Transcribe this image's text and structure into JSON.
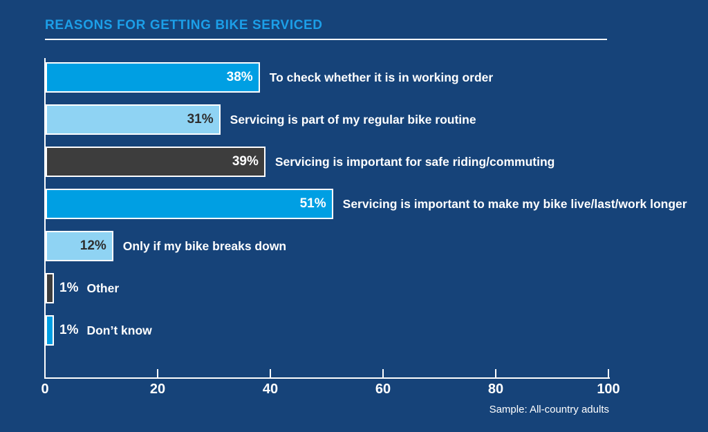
{
  "title": "REASONS FOR GETTING BIKE SERVICED",
  "footnote": "Sample: All-country adults",
  "colors": {
    "background": "#164379",
    "title": "#1C9FE8",
    "axis": "#FFFFFF",
    "bar_blue": "#009FE3",
    "bar_light_blue": "#8FD3F3",
    "bar_dark": "#3D3D3D",
    "value_text_light": "#FFFFFF",
    "value_text_dark": "#2E2E2E"
  },
  "chart_data": {
    "type": "bar",
    "orientation": "horizontal",
    "title": "REASONS FOR GETTING BIKE SERVICED",
    "xlabel": "",
    "ylabel": "",
    "xlim": [
      0,
      100
    ],
    "xticks": [
      0,
      20,
      40,
      60,
      80,
      100
    ],
    "grid": false,
    "legend": false,
    "footnote": "Sample: All-country adults",
    "categories": [
      "To check whether it is in working order",
      "Servicing is part of my regular bike routine",
      "Servicing is important for safe riding/commuting",
      "Servicing is important to make my bike live/last/work longer",
      "Only if my bike breaks down",
      "Other",
      "Don’t know"
    ],
    "values": [
      38,
      31,
      39,
      51,
      12,
      1,
      1
    ],
    "bars": [
      {
        "label": "To check whether it is in working order",
        "value": 38,
        "value_label": "38%",
        "color": "#009FE3",
        "value_color": "#FFFFFF",
        "value_inside": true
      },
      {
        "label": "Servicing is part of my regular bike routine",
        "value": 31,
        "value_label": "31%",
        "color": "#8FD3F3",
        "value_color": "#2E2E2E",
        "value_inside": true
      },
      {
        "label": "Servicing is important for safe riding/commuting",
        "value": 39,
        "value_label": "39%",
        "color": "#3D3D3D",
        "value_color": "#FFFFFF",
        "value_inside": true
      },
      {
        "label": "Servicing is important to make my bike live/last/work longer",
        "value": 51,
        "value_label": "51%",
        "color": "#009FE3",
        "value_color": "#FFFFFF",
        "value_inside": true
      },
      {
        "label": "Only if my bike breaks down",
        "value": 12,
        "value_label": "12%",
        "color": "#8FD3F3",
        "value_color": "#2E2E2E",
        "value_inside": true
      },
      {
        "label": "Other",
        "value": 1,
        "value_label": "1%",
        "color": "#3D3D3D",
        "value_color": "#FFFFFF",
        "value_inside": false
      },
      {
        "label": "Don’t know",
        "value": 1,
        "value_label": "1%",
        "color": "#009FE3",
        "value_color": "#FFFFFF",
        "value_inside": false
      }
    ]
  }
}
